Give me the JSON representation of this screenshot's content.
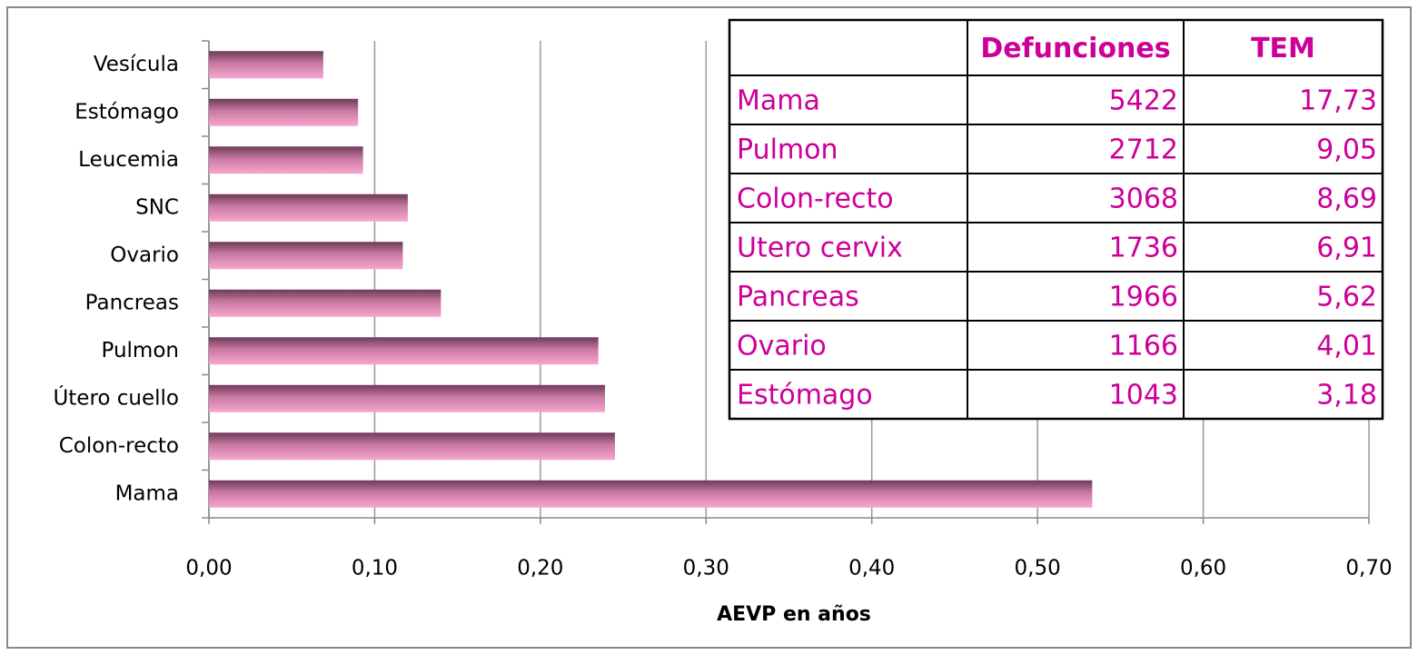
{
  "chart_data": {
    "type": "hbar",
    "xlabel": "AEVP en años",
    "categories": [
      "Mama",
      "Colon-recto",
      "Útero cuello",
      "Pulmon",
      "Pancreas",
      "Ovario",
      "SNC",
      "Leucemia",
      "Estómago",
      "Vesícula"
    ],
    "values": [
      0.533,
      0.245,
      0.239,
      0.235,
      0.14,
      0.117,
      0.12,
      0.093,
      0.09,
      0.069
    ],
    "color": "#f7a6cf",
    "xlim": [
      0,
      0.7
    ],
    "xticks": [
      {
        "value": 0,
        "label": "0,00"
      },
      {
        "value": 0.1,
        "label": "0,10"
      },
      {
        "value": 0.2,
        "label": "0,20"
      },
      {
        "value": 0.3,
        "label": "0,30"
      },
      {
        "value": 0.4,
        "label": "0,40"
      },
      {
        "value": 0.5,
        "label": "0,50"
      },
      {
        "value": 0.6,
        "label": "0,60"
      },
      {
        "value": 0.7,
        "label": "0,70"
      }
    ],
    "grid": true,
    "table": {
      "columns": [
        "Defunciones",
        "TEM"
      ],
      "rows": [
        [
          "Mama",
          "5422",
          "17,73"
        ],
        [
          "Pulmon",
          "2712",
          "9,05"
        ],
        [
          "Colon-recto",
          "3068",
          "8,69"
        ],
        [
          "Utero cervix",
          "1736",
          "6,91"
        ],
        [
          "Pancreas",
          "1966",
          "5,62"
        ],
        [
          "Ovario",
          "1166",
          "4,01"
        ],
        [
          "Estómago",
          "1043",
          "3,18"
        ]
      ]
    }
  }
}
